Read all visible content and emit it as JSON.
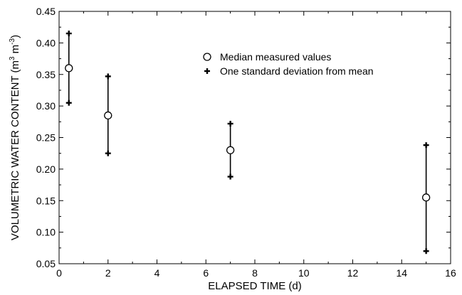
{
  "chart_data": {
    "type": "scatter",
    "xlabel": "ELAPSED TIME (d)",
    "ylabel": {
      "prefix": "VOLUMETRIC WATER CONTENT (m",
      "sup1": "3",
      "middle": " m",
      "sup2": "-3",
      "suffix": ")"
    },
    "xlim": [
      0,
      16
    ],
    "ylim": [
      0.05,
      0.45
    ],
    "x_ticks": [
      "0",
      "2",
      "4",
      "6",
      "8",
      "10",
      "12",
      "14",
      "16"
    ],
    "y_ticks": [
      "0.05",
      "0.10",
      "0.15",
      "0.20",
      "0.25",
      "0.30",
      "0.35",
      "0.40",
      "0.45"
    ],
    "grid": false,
    "legend_position": "top-center",
    "series": [
      {
        "name": "Median measured values",
        "marker": "open-circle",
        "x": [
          0.4,
          2,
          7,
          15
        ],
        "y": [
          0.36,
          0.285,
          0.23,
          0.155
        ]
      },
      {
        "name": "One standard deviation from mean",
        "marker": "plus",
        "x": [
          0.4,
          2,
          7,
          15
        ],
        "upper": [
          0.415,
          0.347,
          0.272,
          0.238
        ],
        "lower": [
          0.305,
          0.225,
          0.188,
          0.07
        ]
      }
    ],
    "colors": {
      "ink": "#000000",
      "background": "#ffffff"
    }
  }
}
